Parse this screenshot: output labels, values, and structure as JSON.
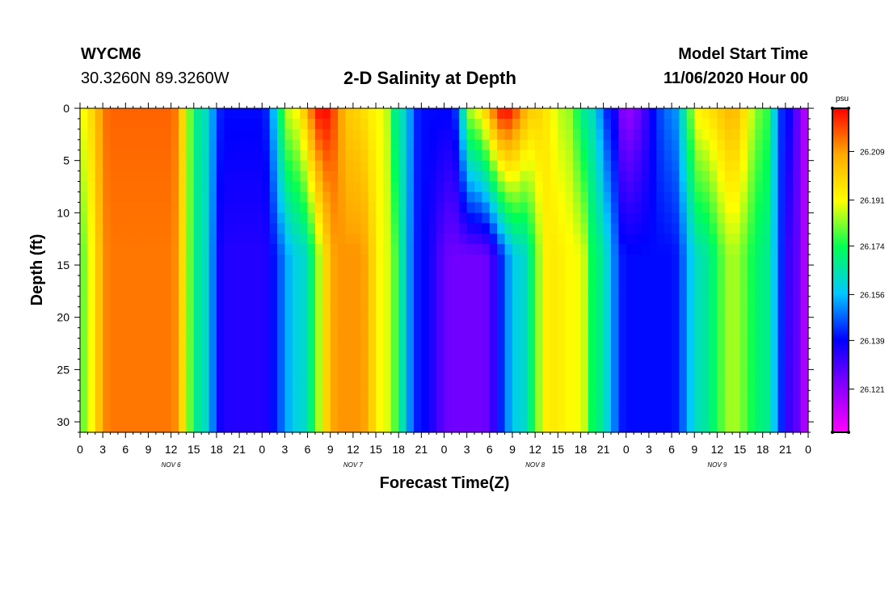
{
  "header": {
    "station": "WYCM6",
    "coordinates": "30.3260N 89.3260W",
    "title": "2-D Salinity at Depth",
    "model_start_label": "Model Start Time",
    "model_start_value": "11/06/2020 Hour 00"
  },
  "chart_data": {
    "type": "heatmap",
    "title": "2-D Salinity at Depth",
    "xlabel": "Forecast Time(Z)",
    "ylabel": "Depth (ft)",
    "x_hours_range": [
      0,
      96
    ],
    "y_range": [
      0,
      31
    ],
    "y_inverted": true,
    "x_ticks": [
      "0",
      "3",
      "6",
      "9",
      "12",
      "15",
      "18",
      "21",
      "0",
      "3",
      "6",
      "9",
      "12",
      "15",
      "18",
      "21",
      "0",
      "3",
      "6",
      "9",
      "12",
      "15",
      "18",
      "21",
      "0",
      "3",
      "6",
      "9",
      "12",
      "15",
      "18",
      "21",
      "0"
    ],
    "y_ticks": [
      "0",
      "5",
      "10",
      "15",
      "20",
      "25",
      "30"
    ],
    "day_labels": [
      "NOV 6",
      "NOV 7",
      "NOV 8",
      "NOV 9"
    ],
    "colorbar": {
      "unit": "psu",
      "range": [
        26.105,
        26.225
      ],
      "tick_values": [
        26.121,
        26.139,
        26.156,
        26.174,
        26.191,
        26.209
      ],
      "tick_labels": [
        "26.121",
        "26.139",
        "26.156",
        "26.174",
        "26.191",
        "26.209"
      ],
      "colors": [
        "#ff00ff",
        "#8800ff",
        "#0000ff",
        "#00c8ff",
        "#00ff55",
        "#ffff00",
        "#ffaa00",
        "#ff0000"
      ]
    },
    "surface_keyframes_hours": [
      0,
      4,
      12,
      16,
      19,
      24,
      28,
      32,
      36,
      40,
      42,
      45,
      49,
      52,
      56,
      60,
      64,
      67,
      70,
      72,
      78,
      82,
      86,
      90,
      93,
      96
    ],
    "surface_keyframes_psu": [
      26.19,
      26.215,
      26.215,
      26.165,
      26.14,
      26.14,
      26.19,
      26.225,
      26.2,
      26.19,
      26.165,
      26.14,
      26.14,
      26.19,
      26.225,
      26.2,
      26.185,
      26.165,
      26.14,
      26.12,
      26.15,
      26.195,
      26.205,
      26.18,
      26.14,
      26.115
    ],
    "bottom_keyframes_hours": [
      0,
      4,
      12,
      16,
      19,
      24,
      29,
      34,
      37,
      40,
      45,
      49,
      53,
      58,
      62,
      66,
      68,
      72,
      78,
      82,
      86,
      90,
      94,
      96
    ],
    "bottom_keyframes_psu": [
      26.18,
      26.213,
      26.213,
      26.165,
      26.135,
      26.135,
      26.16,
      26.21,
      26.21,
      26.19,
      26.14,
      26.125,
      26.125,
      26.16,
      26.195,
      26.19,
      26.17,
      26.14,
      26.14,
      26.165,
      26.185,
      26.17,
      26.13,
      26.115
    ]
  }
}
